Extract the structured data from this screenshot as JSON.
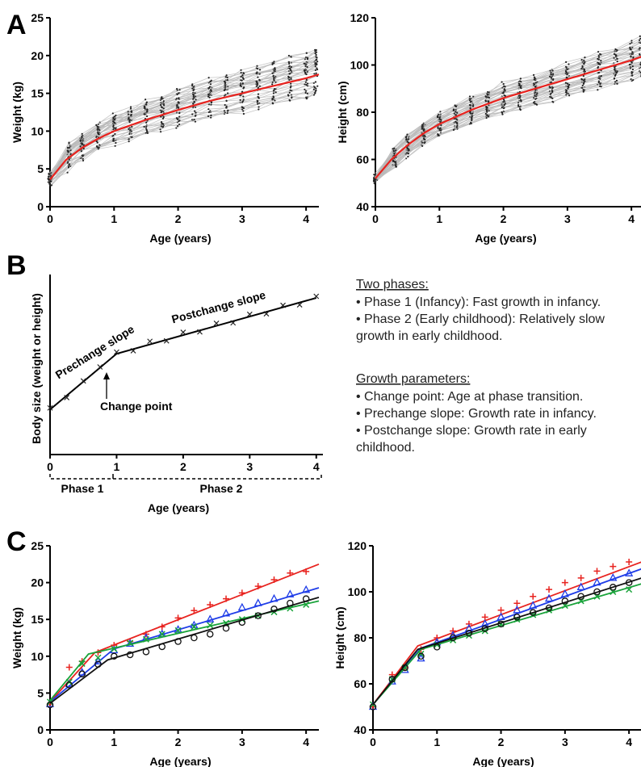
{
  "panel_labels": [
    "A",
    "B",
    "C"
  ],
  "chart_data": [
    {
      "panel": "A",
      "type": "line",
      "xlabel": "Age (years)",
      "ylabel": "Weight (kg)",
      "xlim": [
        0,
        4.2
      ],
      "ylim": [
        0,
        25
      ],
      "xticks": [
        "0",
        "1",
        "2",
        "3",
        "4"
      ],
      "yticks": [
        "0",
        "5",
        "10",
        "15",
        "20",
        "25"
      ],
      "series": [
        {
          "x": [
            0,
            0.25,
            0.5,
            0.75,
            1,
            1.5,
            2,
            2.5,
            3,
            3.5,
            4,
            4.2
          ],
          "values": [
            3.6,
            6.2,
            7.8,
            9.0,
            10.0,
            11.5,
            12.8,
            14.0,
            15.0,
            16.0,
            17.0,
            17.5
          ]
        }
      ],
      "colors": {
        "fit": "#e8231f",
        "individual": "#b8b8b8"
      }
    },
    {
      "panel": "A",
      "type": "line",
      "xlabel": "Age (years)",
      "ylabel": "Height (cm)",
      "xlim": [
        0,
        4.2
      ],
      "ylim": [
        40,
        120
      ],
      "xticks": [
        "0",
        "1",
        "2",
        "3",
        "4"
      ],
      "yticks": [
        "40",
        "60",
        "80",
        "100",
        "120"
      ],
      "series": [
        {
          "x": [
            0,
            0.25,
            0.5,
            0.75,
            1,
            1.5,
            2,
            2.5,
            3,
            3.5,
            4,
            4.2
          ],
          "values": [
            52,
            60,
            66,
            71,
            75,
            81,
            86,
            90,
            94,
            98,
            102,
            104
          ]
        }
      ],
      "colors": {
        "fit": "#e8231f",
        "individual": "#b8b8b8"
      }
    },
    {
      "panel": "B",
      "type": "line",
      "xlabel": "Age (years)",
      "ylabel": "Body size (weight or height)",
      "xlim": [
        0,
        4.1
      ],
      "xticks": [
        "0",
        "1",
        "2",
        "3",
        "4"
      ],
      "series": [
        {
          "x": [
            0,
            0.25,
            0.5,
            0.75,
            1,
            1.25,
            1.5,
            1.75,
            2,
            2.25,
            2.5,
            2.75,
            3,
            3.25,
            3.5,
            3.75,
            4
          ],
          "values": [
            2.5,
            3.3,
            4.0,
            5.0,
            5.6,
            5.9,
            6.2,
            6.45,
            6.7,
            6.95,
            7.2,
            7.45,
            7.7,
            7.95,
            8.2,
            8.45,
            8.7
          ]
        }
      ],
      "annotations": {
        "prechange": "Prechange slope",
        "postchange": "Postchange slope",
        "change_point": "Change point",
        "phase1": "Phase 1",
        "phase2": "Phase 2"
      }
    },
    {
      "panel": "C",
      "type": "line",
      "xlabel": "Age (years)",
      "ylabel": "Weight (kg)",
      "xlim": [
        0,
        4.2
      ],
      "ylim": [
        0,
        25
      ],
      "xticks": [
        "0",
        "1",
        "2",
        "3",
        "4"
      ],
      "yticks": [
        "0",
        "5",
        "10",
        "15",
        "20",
        "25"
      ],
      "series": [
        {
          "marker": "+",
          "color": "#e8231f",
          "fit_x": [
            0,
            0.7,
            4.2
          ],
          "fit_y": [
            3.8,
            10.5,
            22.5
          ],
          "x": [
            0,
            0.3,
            0.5,
            0.75,
            1,
            1.25,
            1.5,
            1.75,
            2,
            2.25,
            2.5,
            2.75,
            3,
            3.25,
            3.5,
            3.75,
            4
          ],
          "values": [
            3.5,
            8.5,
            9.3,
            10.5,
            11.5,
            12.0,
            13.0,
            14.0,
            15.2,
            16.2,
            17.0,
            17.8,
            18.6,
            19.5,
            20.4,
            21.3,
            21.5
          ]
        },
        {
          "marker": "triangle",
          "color": "#1f3de8",
          "fit_x": [
            0,
            1.0,
            4.2
          ],
          "fit_y": [
            3.8,
            11.0,
            19.3
          ],
          "x": [
            0,
            0.3,
            0.5,
            0.75,
            1,
            1.25,
            1.5,
            1.75,
            2,
            2.25,
            2.5,
            2.75,
            3,
            3.25,
            3.5,
            3.75,
            4
          ],
          "values": [
            3.5,
            6.2,
            7.8,
            9.3,
            10.8,
            11.7,
            12.5,
            13.0,
            13.6,
            14.2,
            15.0,
            15.8,
            16.6,
            17.2,
            17.8,
            18.4,
            19.0
          ]
        },
        {
          "marker": "x",
          "color": "#19a33a",
          "fit_x": [
            0,
            0.6,
            4.2
          ],
          "fit_y": [
            4.0,
            10.3,
            17.5
          ],
          "x": [
            0,
            0.3,
            0.5,
            0.75,
            1,
            1.25,
            1.5,
            1.75,
            2,
            2.25,
            2.5,
            2.75,
            3,
            3.25,
            3.5,
            3.75,
            4
          ],
          "values": [
            3.8,
            6.5,
            9.0,
            9.8,
            11.0,
            11.8,
            12.3,
            13.0,
            13.5,
            14.0,
            14.2,
            14.5,
            15.0,
            15.5,
            16.0,
            16.5,
            17.0
          ]
        },
        {
          "marker": "circle",
          "color": "#111111",
          "fit_x": [
            0,
            0.9,
            4.2
          ],
          "fit_y": [
            3.6,
            9.5,
            18.0
          ],
          "x": [
            0,
            0.3,
            0.5,
            0.75,
            1,
            1.25,
            1.5,
            1.75,
            2,
            2.25,
            2.5,
            2.75,
            3,
            3.25,
            3.5,
            3.75,
            4
          ],
          "values": [
            3.4,
            6.1,
            7.6,
            8.9,
            10.0,
            10.2,
            10.6,
            11.3,
            12.0,
            12.5,
            13.0,
            13.8,
            14.6,
            15.5,
            16.4,
            17.2,
            17.8
          ]
        }
      ]
    },
    {
      "panel": "C",
      "type": "line",
      "xlabel": "Age (years)",
      "ylabel": "Height (cm)",
      "xlim": [
        0,
        4.2
      ],
      "ylim": [
        40,
        120
      ],
      "xticks": [
        "0",
        "1",
        "2",
        "3",
        "4"
      ],
      "yticks": [
        "40",
        "60",
        "80",
        "100",
        "120"
      ],
      "series": [
        {
          "marker": "+",
          "color": "#e8231f",
          "fit_x": [
            0,
            0.7,
            4.2
          ],
          "fit_y": [
            51,
            76.5,
            113
          ],
          "x": [
            0,
            0.3,
            0.5,
            0.75,
            1,
            1.25,
            1.5,
            1.75,
            2,
            2.25,
            2.5,
            2.75,
            3,
            3.25,
            3.5,
            3.75,
            4
          ],
          "values": [
            50,
            64,
            67,
            75,
            80,
            83,
            86,
            89,
            92,
            95,
            98,
            101,
            104,
            106,
            109,
            111,
            113
          ]
        },
        {
          "marker": "triangle",
          "color": "#1f3de8",
          "fit_x": [
            0,
            0.75,
            4.2
          ],
          "fit_y": [
            51,
            75.5,
            110
          ],
          "x": [
            0,
            0.3,
            0.5,
            0.75,
            1,
            1.25,
            1.5,
            1.75,
            2,
            2.25,
            2.5,
            2.75,
            3,
            3.25,
            3.5,
            3.75,
            4
          ],
          "values": [
            50,
            61,
            66,
            71,
            78,
            81,
            84,
            86,
            89,
            92,
            94,
            97,
            99,
            102,
            104,
            106,
            108
          ]
        },
        {
          "marker": "x",
          "color": "#19a33a",
          "fit_x": [
            0,
            0.75,
            4.2
          ],
          "fit_y": [
            51,
            75,
            103.5
          ],
          "x": [
            0,
            0.3,
            0.5,
            0.75,
            1,
            1.25,
            1.5,
            1.75,
            2,
            2.25,
            2.5,
            2.75,
            3,
            3.25,
            3.5,
            3.75,
            4
          ],
          "values": [
            51,
            62,
            67,
            73,
            77,
            79,
            81,
            83,
            86,
            88,
            90,
            92,
            94,
            96,
            98,
            100,
            101
          ]
        },
        {
          "marker": "circle",
          "color": "#111111",
          "fit_x": [
            0,
            0.7,
            4.2
          ],
          "fit_y": [
            51,
            75,
            106
          ],
          "x": [
            0,
            0.3,
            0.5,
            0.75,
            1,
            1.25,
            1.5,
            1.75,
            2,
            2.25,
            2.5,
            2.75,
            3,
            3.25,
            3.5,
            3.75,
            4
          ],
          "values": [
            50,
            62,
            67,
            72,
            76,
            80,
            82,
            84,
            86,
            89,
            91,
            93,
            96,
            98,
            100,
            102,
            104
          ]
        }
      ]
    }
  ],
  "text_panel": {
    "heading1": "Two phases:",
    "line1": "• Phase 1 (Infancy): Fast growth in infancy.",
    "line2": "• Phase 2 (Early childhood): Relatively slow",
    "line3": "growth in early childhood.",
    "heading2": "Growth parameters:",
    "line4": "• Change point: Age at phase transition.",
    "line5": "• Prechange slope: Growth rate in infancy.",
    "line6": "• Postchange slope: Growth rate in early",
    "line7": "childhood."
  }
}
